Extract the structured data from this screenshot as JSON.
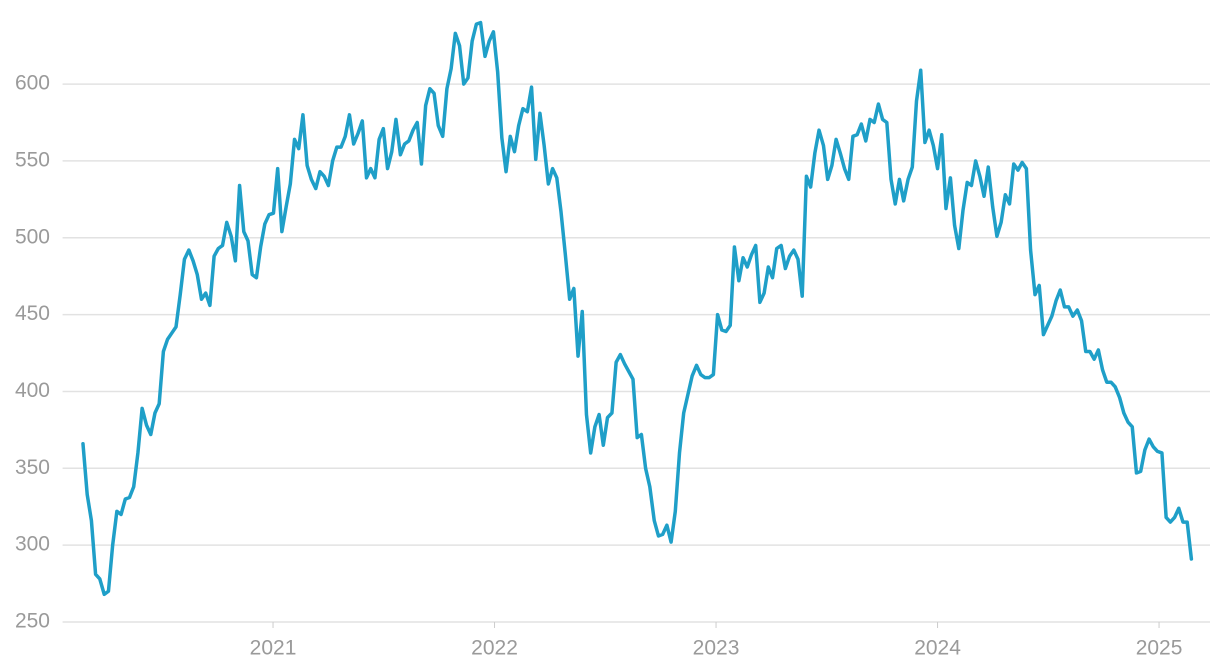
{
  "chart_data": {
    "type": "line",
    "color": "#1f9fc8",
    "grid": true,
    "xlim": [
      2020.05,
      2025.23
    ],
    "xticks": [
      2021,
      2022,
      2023,
      2024,
      2025
    ],
    "ylim": [
      250,
      648
    ],
    "yticks": [
      250,
      300,
      350,
      400,
      450,
      500,
      550,
      600
    ],
    "x": [
      2020.142,
      2020.161,
      2020.18,
      2020.199,
      2020.218,
      2020.238,
      2020.257,
      2020.276,
      2020.295,
      2020.314,
      2020.333,
      2020.352,
      2020.371,
      2020.39,
      2020.409,
      2020.429,
      2020.448,
      2020.467,
      2020.486,
      2020.505,
      2020.524,
      2020.543,
      2020.562,
      2020.581,
      2020.6,
      2020.62,
      2020.639,
      2020.658,
      2020.677,
      2020.696,
      2020.715,
      2020.734,
      2020.753,
      2020.772,
      2020.791,
      2020.811,
      2020.83,
      2020.849,
      2020.868,
      2020.887,
      2020.906,
      2020.925,
      2020.944,
      2020.963,
      2020.982,
      2021.002,
      2021.021,
      2021.04,
      2021.059,
      2021.078,
      2021.097,
      2021.116,
      2021.135,
      2021.154,
      2021.173,
      2021.193,
      2021.212,
      2021.231,
      2021.25,
      2021.269,
      2021.288,
      2021.307,
      2021.326,
      2021.345,
      2021.364,
      2021.384,
      2021.403,
      2021.422,
      2021.441,
      2021.46,
      2021.479,
      2021.498,
      2021.517,
      2021.536,
      2021.555,
      2021.575,
      2021.594,
      2021.613,
      2021.632,
      2021.651,
      2021.67,
      2021.689,
      2021.708,
      2021.727,
      2021.746,
      2021.766,
      2021.785,
      2021.804,
      2021.823,
      2021.842,
      2021.861,
      2021.88,
      2021.899,
      2021.918,
      2021.937,
      2021.957,
      2021.976,
      2021.995,
      2022.014,
      2022.033,
      2022.052,
      2022.071,
      2022.09,
      2022.109,
      2022.128,
      2022.148,
      2022.167,
      2022.186,
      2022.205,
      2022.224,
      2022.243,
      2022.262,
      2022.281,
      2022.3,
      2022.319,
      2022.339,
      2022.358,
      2022.377,
      2022.396,
      2022.415,
      2022.434,
      2022.453,
      2022.472,
      2022.491,
      2022.51,
      2022.53,
      2022.549,
      2022.568,
      2022.587,
      2022.606,
      2022.625,
      2022.644,
      2022.663,
      2022.682,
      2022.701,
      2022.721,
      2022.74,
      2022.759,
      2022.778,
      2022.797,
      2022.816,
      2022.835,
      2022.854,
      2022.873,
      2022.892,
      2022.912,
      2022.931,
      2022.95,
      2022.969,
      2022.988,
      2023.007,
      2023.026,
      2023.045,
      2023.064,
      2023.083,
      2023.103,
      2023.122,
      2023.141,
      2023.16,
      2023.179,
      2023.198,
      2023.217,
      2023.236,
      2023.255,
      2023.274,
      2023.294,
      2023.313,
      2023.332,
      2023.351,
      2023.37,
      2023.389,
      2023.408,
      2023.427,
      2023.446,
      2023.465,
      2023.485,
      2023.504,
      2023.523,
      2023.542,
      2023.561,
      2023.58,
      2023.599,
      2023.618,
      2023.637,
      2023.656,
      2023.676,
      2023.695,
      2023.714,
      2023.733,
      2023.752,
      2023.771,
      2023.79,
      2023.809,
      2023.828,
      2023.847,
      2023.867,
      2023.886,
      2023.905,
      2023.924,
      2023.943,
      2023.962,
      2023.981,
      2024.0,
      2024.019,
      2024.038,
      2024.058,
      2024.077,
      2024.096,
      2024.115,
      2024.134,
      2024.153,
      2024.172,
      2024.191,
      2024.21,
      2024.229,
      2024.249,
      2024.268,
      2024.287,
      2024.306,
      2024.325,
      2024.344,
      2024.363,
      2024.382,
      2024.401,
      2024.42,
      2024.44,
      2024.459,
      2024.478,
      2024.497,
      2024.516,
      2024.535,
      2024.554,
      2024.573,
      2024.592,
      2024.611,
      2024.631,
      2024.65,
      2024.669,
      2024.688,
      2024.707,
      2024.726,
      2024.745,
      2024.764,
      2024.783,
      2024.802,
      2024.822,
      2024.841,
      2024.86,
      2024.879,
      2024.898,
      2024.917,
      2024.936,
      2024.955,
      2024.974,
      2024.993,
      2025.013,
      2025.032,
      2025.051,
      2025.07,
      2025.089,
      2025.108,
      2025.127,
      2025.146
    ],
    "values": [
      366,
      333,
      316,
      281,
      278,
      268,
      270,
      300,
      322,
      320,
      330,
      331,
      338,
      360,
      389,
      378,
      372,
      386,
      392,
      426,
      434,
      438,
      442,
      463,
      486,
      492,
      485,
      476,
      460,
      464,
      456,
      488,
      493,
      495,
      510,
      501,
      485,
      534,
      504,
      498,
      476,
      474,
      494,
      509,
      515,
      516,
      545,
      504,
      520,
      535,
      564,
      558,
      580,
      547,
      538,
      532,
      543,
      540,
      534,
      550,
      559,
      559,
      566,
      580,
      561,
      568,
      576,
      539,
      545,
      539,
      564,
      571,
      545,
      556,
      577,
      554,
      561,
      563,
      570,
      575,
      548,
      586,
      597,
      594,
      573,
      566,
      597,
      610,
      633,
      625,
      600,
      604,
      628,
      639,
      640,
      618,
      628,
      634,
      608,
      565,
      543,
      566,
      556,
      573,
      584,
      582,
      598,
      551,
      581,
      560,
      535,
      545,
      539,
      517,
      490,
      460,
      467,
      423,
      452,
      385,
      360,
      377,
      385,
      365,
      383,
      386,
      419,
      424,
      418,
      413,
      408,
      370,
      372,
      350,
      338,
      316,
      306,
      307,
      313,
      302,
      322,
      360,
      386,
      398,
      410,
      417,
      411,
      409,
      409,
      411,
      450,
      440,
      439,
      443,
      494,
      472,
      487,
      481,
      489,
      495,
      458,
      464,
      481,
      474,
      493,
      495,
      480,
      488,
      492,
      486,
      462,
      540,
      533,
      555,
      570,
      560,
      538,
      547,
      564,
      555,
      545,
      538,
      566,
      567,
      574,
      563,
      577,
      575,
      587,
      577,
      575,
      538,
      522,
      538,
      524,
      538,
      546,
      589,
      609,
      562,
      570,
      560,
      545,
      567,
      519,
      539,
      508,
      493,
      518,
      536,
      534,
      550,
      540,
      527,
      546,
      520,
      501,
      510,
      528,
      522,
      548,
      544,
      549,
      545,
      492,
      463,
      469,
      437,
      443,
      449,
      459,
      466,
      455,
      455,
      449,
      453,
      446,
      426,
      426,
      421,
      427,
      414,
      406,
      406,
      403,
      396,
      386,
      380,
      377,
      347,
      348,
      362,
      369,
      364,
      361,
      360,
      318,
      315,
      318,
      324,
      315,
      315,
      291
    ]
  }
}
